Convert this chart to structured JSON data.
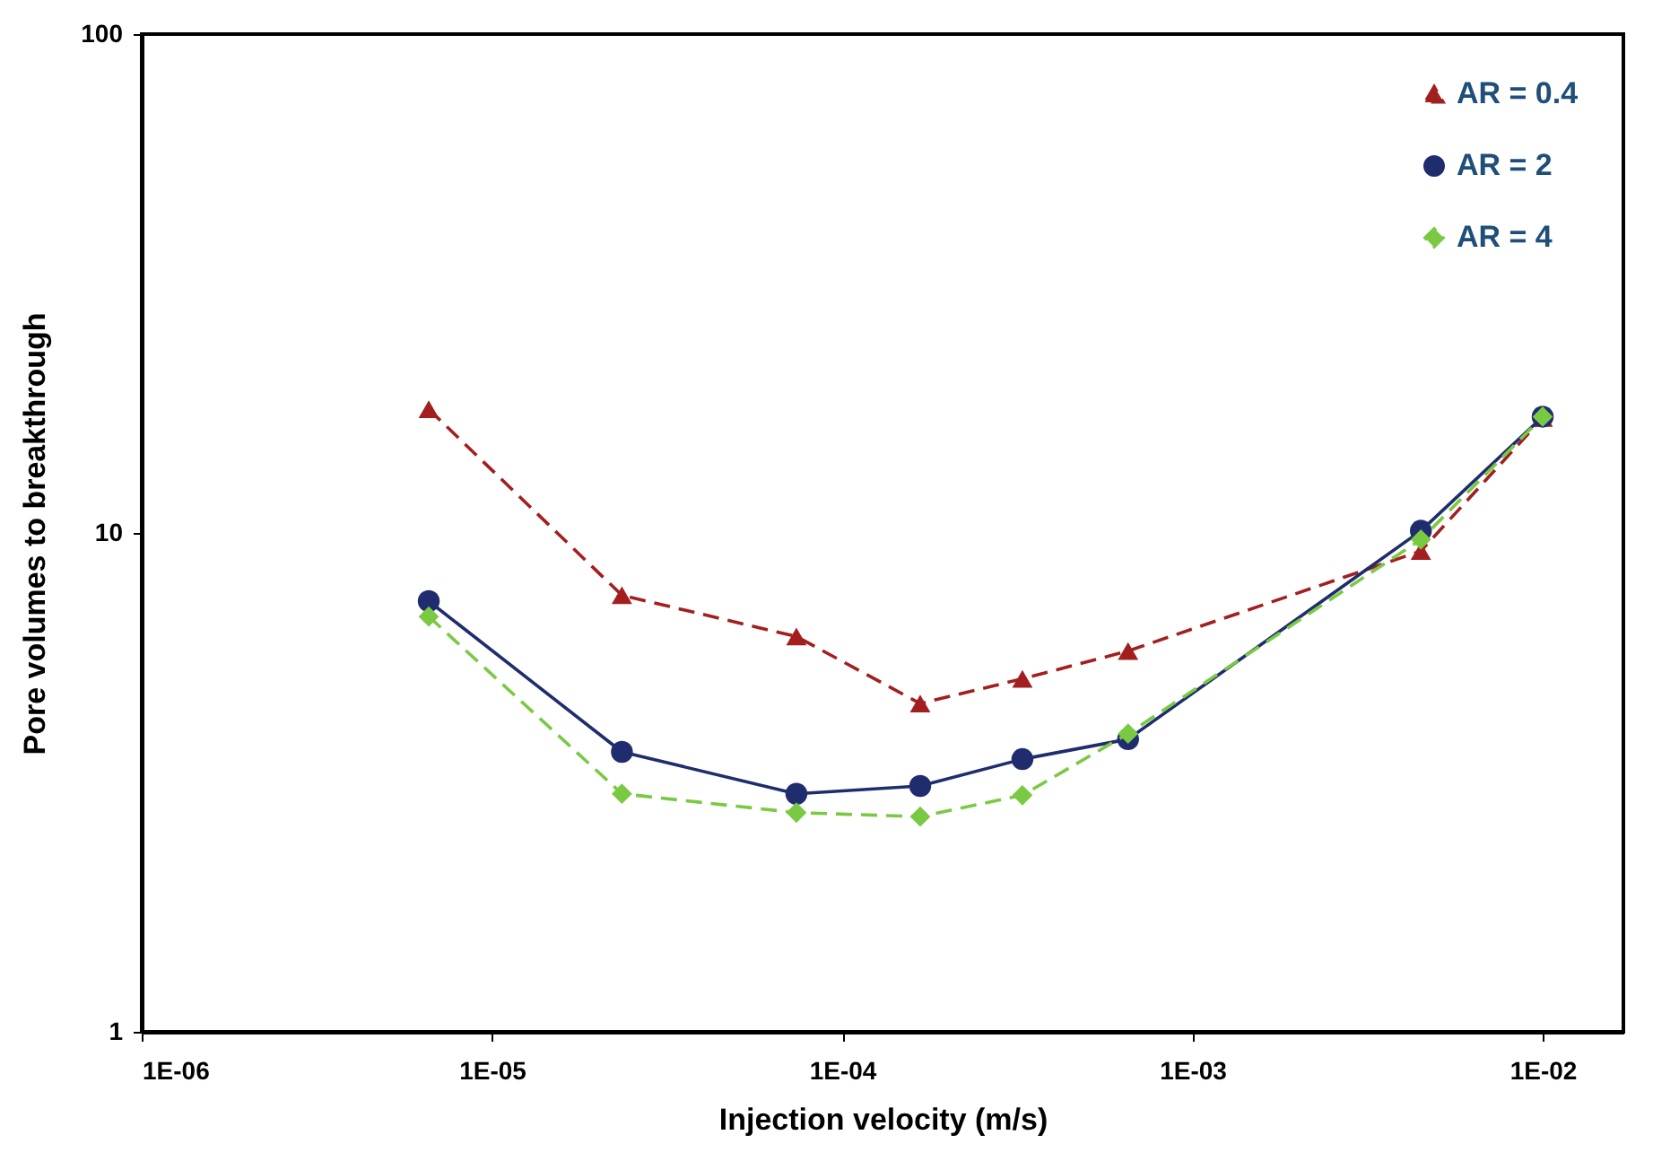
{
  "chart_data": {
    "type": "line",
    "xlabel": "Injection velocity (m/s)",
    "ylabel": "Pore volumes to breakthrough",
    "log": "xy",
    "grid": false,
    "legend": "top right",
    "x": [
      6.6e-06,
      2.35e-05,
      7.4e-05,
      0.000167,
      0.000327,
      0.000655,
      0.00449,
      0.01
    ],
    "xlim": [
      1e-06,
      0.017
    ],
    "xticks": [
      {
        "value": 1e-06,
        "label": "1E-06"
      },
      {
        "value": 1e-05,
        "label": "1E-05"
      },
      {
        "value": 0.0001,
        "label": "1E-04"
      },
      {
        "value": 0.001,
        "label": "1E-03"
      },
      {
        "value": 0.01,
        "label": "1E-02"
      }
    ],
    "ylim": [
      1,
      100
    ],
    "yticks": [
      1,
      10,
      100
    ],
    "series": [
      {
        "name": "AR = 0.4",
        "color": "#a31f1f",
        "marker": "triangle",
        "line_style": "dashed",
        "values": [
          17.7,
          7.5,
          6.2,
          4.55,
          5.1,
          5.8,
          9.2,
          17.0
        ]
      },
      {
        "name": "AR = 2",
        "color": "#1f2d6e",
        "marker": "circle",
        "line_style": "solid",
        "values": [
          7.3,
          3.64,
          3.0,
          3.11,
          3.52,
          3.86,
          10.1,
          17.1
        ]
      },
      {
        "name": "AR = 4",
        "color": "#7ac943",
        "marker": "diamond",
        "line_style": "dashed",
        "values": [
          6.8,
          3.0,
          2.75,
          2.7,
          2.98,
          3.96,
          9.7,
          17.1
        ]
      }
    ]
  }
}
